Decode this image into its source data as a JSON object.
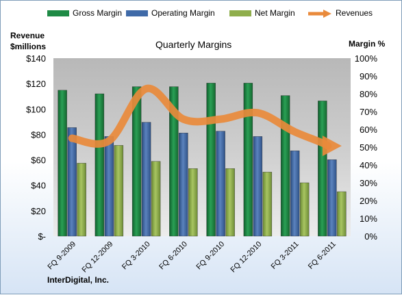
{
  "chart_data": {
    "type": "bar",
    "title": "Quarterly Margins",
    "left_axis_label": [
      "Revenue",
      "$millions"
    ],
    "right_axis_label": "Margin %",
    "company": "InterDigital, Inc.",
    "categories": [
      "FQ 9-2009",
      "FQ 12-2009",
      "FQ 3-2010",
      "FQ 6-2010",
      "FQ 9-2010",
      "FQ 12-2010",
      "FQ 3-2011",
      "FQ 6-2011"
    ],
    "left_axis": {
      "ylim": [
        0,
        140
      ],
      "ticks": [
        "$-",
        "$20",
        "$40",
        "$60",
        "$80",
        "$100",
        "$120",
        "$140"
      ]
    },
    "right_axis": {
      "ylim": [
        0,
        100
      ],
      "ticks": [
        "0%",
        "10%",
        "20%",
        "30%",
        "40%",
        "50%",
        "60%",
        "70%",
        "80%",
        "90%",
        "100%"
      ]
    },
    "series": [
      {
        "name": "Gross Margin",
        "type": "bar",
        "axis": "right",
        "color": "#1e8a45",
        "values": [
          82,
          80,
          84,
          84,
          86,
          86,
          79,
          76
        ]
      },
      {
        "name": "Operating Margin",
        "type": "bar",
        "axis": "right",
        "color": "#3f6aa8",
        "values": [
          61,
          56,
          64,
          58,
          59,
          56,
          48,
          43
        ]
      },
      {
        "name": "Net Margin",
        "type": "bar",
        "axis": "right",
        "color": "#8fae4c",
        "values": [
          41,
          51,
          42,
          38,
          38,
          36,
          30,
          25
        ]
      },
      {
        "name": "Revenues",
        "type": "line",
        "axis": "left",
        "color": "#e98a3b",
        "values": [
          77,
          75,
          116,
          92,
          92,
          97,
          82,
          71
        ]
      }
    ],
    "grid": false,
    "legend_position": "top"
  }
}
